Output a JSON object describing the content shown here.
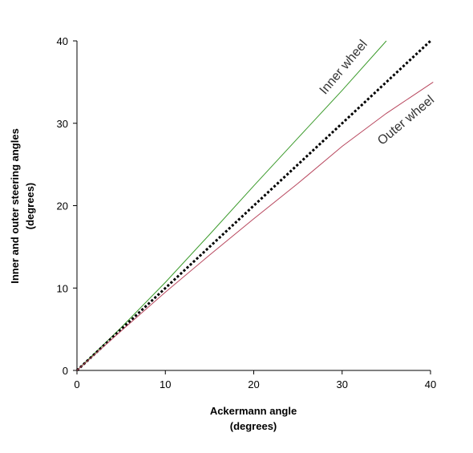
{
  "chart_data": {
    "type": "line",
    "xlabel": [
      "Ackermann angle",
      "(degrees)"
    ],
    "ylabel": [
      "Inner and outer steering angles",
      "(degrees)"
    ],
    "xlim": [
      0,
      40
    ],
    "ylim": [
      0,
      40
    ],
    "xticks": [
      0,
      10,
      20,
      30,
      40
    ],
    "yticks": [
      0,
      10,
      20,
      30,
      40
    ],
    "grid": false,
    "series": [
      {
        "name": "Inner wheel",
        "color": "#3a9a2a",
        "style": "solid",
        "x": [
          0,
          5,
          10,
          15,
          20,
          25,
          30,
          35
        ],
        "y": [
          0,
          5.2,
          10.7,
          16.5,
          22.4,
          28.2,
          34.0,
          40.0
        ]
      },
      {
        "name": "",
        "color": "#000000",
        "style": "dotted",
        "x": [
          0,
          10,
          20,
          30,
          40
        ],
        "y": [
          0,
          10,
          20,
          30,
          40
        ]
      },
      {
        "name": "Outer wheel",
        "color": "#b8475e",
        "style": "solid",
        "x": [
          0,
          5,
          10,
          15,
          20,
          25,
          30,
          35,
          40.3
        ],
        "y": [
          0,
          4.8,
          9.5,
          14.0,
          18.4,
          22.7,
          27.2,
          31.2,
          35.0
        ]
      }
    ],
    "annotations": [
      {
        "text": "Inner wheel",
        "x": 30.5,
        "y": 36.5,
        "angle": -50
      },
      {
        "text": "Outer wheel",
        "x": 37.5,
        "y": 30.0,
        "angle": -40
      }
    ]
  }
}
